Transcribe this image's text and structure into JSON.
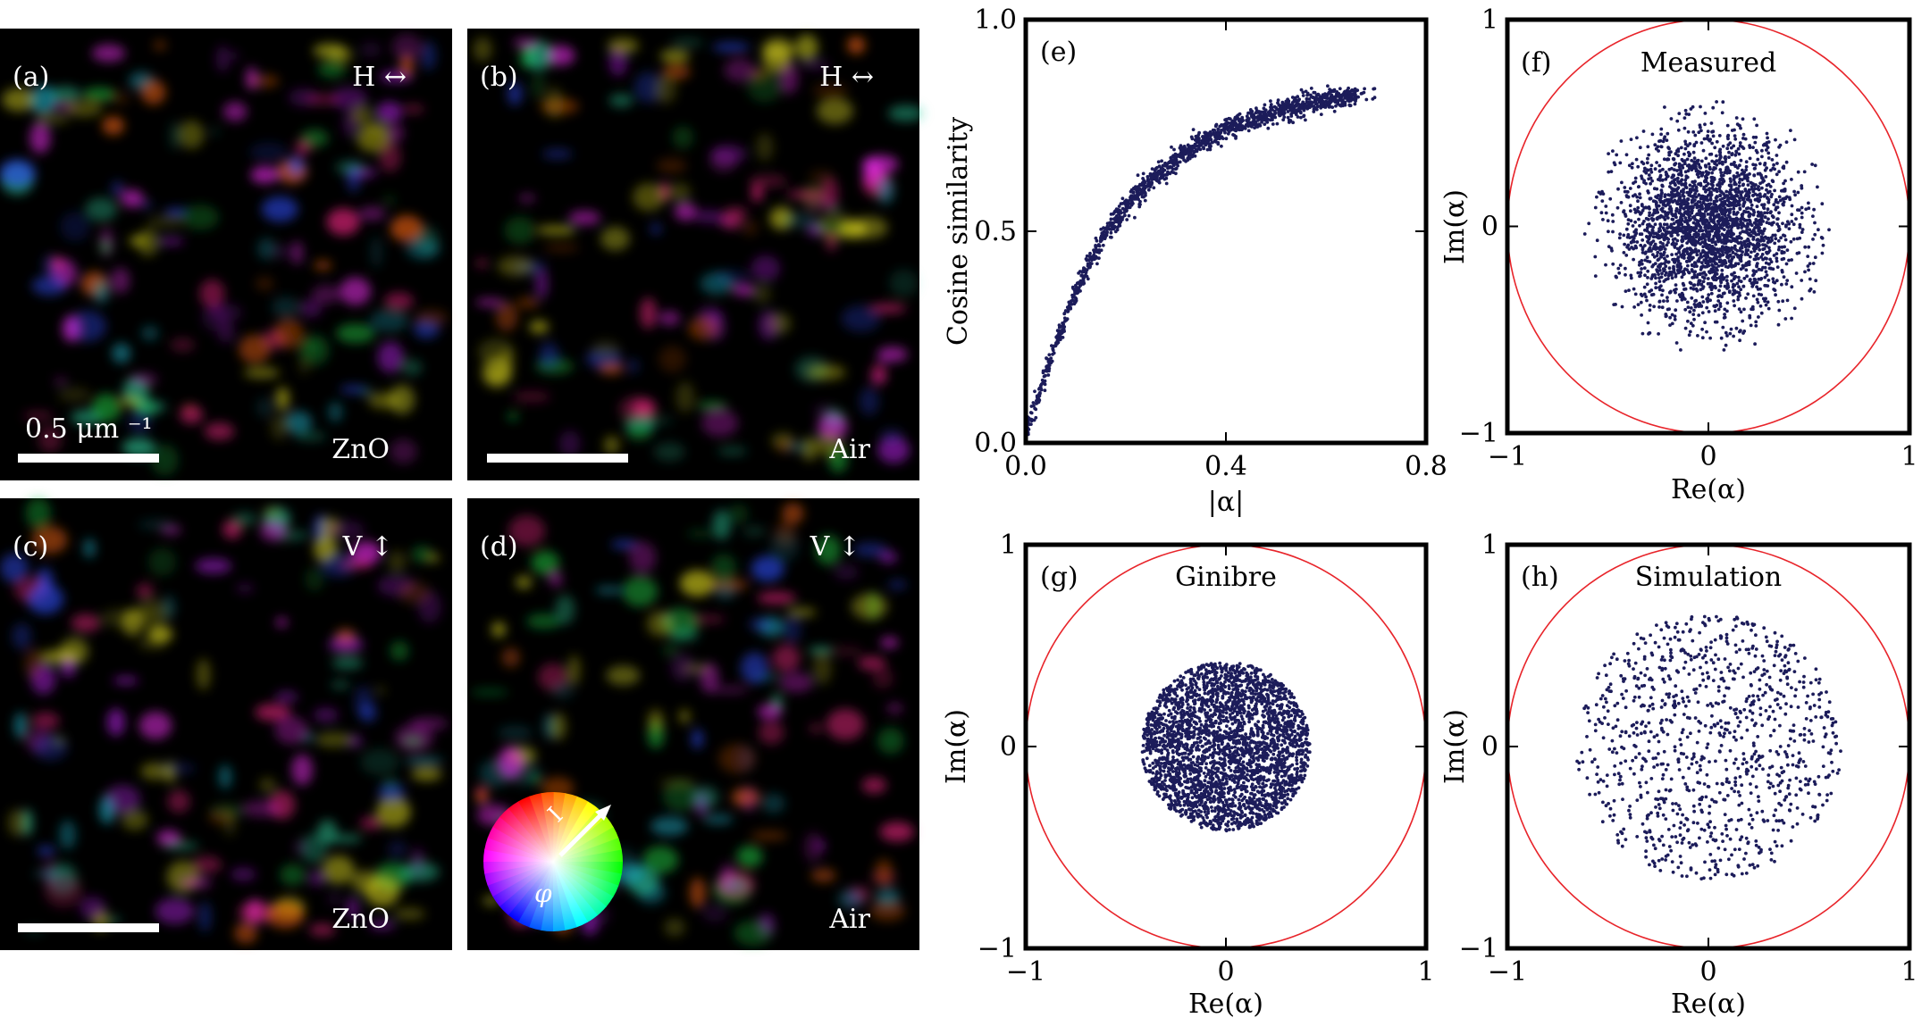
{
  "panels": {
    "a": {
      "label": "(a)",
      "pol": "H ↔",
      "medium": "ZnO",
      "scale_label": "0.5 μm ⁻¹"
    },
    "b": {
      "label": "(b)",
      "pol": "H ↔",
      "medium": "Air"
    },
    "c": {
      "label": "(c)",
      "pol": "V ↕",
      "medium": "ZnO"
    },
    "d": {
      "label": "(d)",
      "pol": "V ↕",
      "medium": "Air",
      "wheel_radial": "I",
      "wheel_phase": "φ"
    }
  },
  "colors": {
    "points": "#1c1c5a",
    "circle": "#e8242a",
    "panel_bg": "#000000",
    "wheel_arrow": "#ffffff"
  },
  "chart_data": [
    {
      "id": "e",
      "type": "scatter",
      "label": "(e)",
      "title": "",
      "xlabel": "|α|",
      "ylabel": "Cosine similarity",
      "xlim": [
        0.0,
        0.8
      ],
      "ylim": [
        0.0,
        1.0
      ],
      "xticks": [
        "0.0",
        "0.4",
        "0.8"
      ],
      "yticks": [
        "0.0",
        "0.5",
        "1.0"
      ],
      "curve": {
        "x": [
          0.0,
          0.05,
          0.1,
          0.15,
          0.2,
          0.25,
          0.3,
          0.35,
          0.4,
          0.45,
          0.5,
          0.55,
          0.6,
          0.65,
          0.7
        ],
        "y": [
          0.02,
          0.2,
          0.36,
          0.48,
          0.56,
          0.62,
          0.67,
          0.71,
          0.74,
          0.76,
          0.78,
          0.8,
          0.81,
          0.82,
          0.83
        ]
      },
      "n_points": 1400,
      "grid": false
    },
    {
      "id": "f",
      "type": "scatter",
      "label": "(f)",
      "title": "Measured",
      "xlabel": "Re(α)",
      "ylabel": "Im(α)",
      "xlim": [
        -1,
        1
      ],
      "ylim": [
        -1,
        1
      ],
      "xticks": [
        "−1",
        "0",
        "1"
      ],
      "yticks": [
        "−1",
        "0",
        "1"
      ],
      "unit_circle": true,
      "distribution": "gaussian",
      "spread": 0.22,
      "max_radius": 0.62,
      "n_points": 2600
    },
    {
      "id": "g",
      "type": "scatter",
      "label": "(g)",
      "title": "Ginibre",
      "xlabel": "Re(α)",
      "ylabel": "Im(α)",
      "xlim": [
        -1,
        1
      ],
      "ylim": [
        -1,
        1
      ],
      "xticks": [
        "−1",
        "0",
        "1"
      ],
      "yticks": [
        "−1",
        "0",
        "1"
      ],
      "unit_circle": true,
      "distribution": "uniform_disk",
      "max_radius": 0.42,
      "n_points": 3000
    },
    {
      "id": "h",
      "type": "scatter",
      "label": "(h)",
      "title": "Simulation",
      "xlabel": "Re(α)",
      "ylabel": "Im(α)",
      "xlim": [
        -1,
        1
      ],
      "ylim": [
        -1,
        1
      ],
      "xticks": [
        "−1",
        "0",
        "1"
      ],
      "yticks": [
        "−1",
        "0",
        "1"
      ],
      "unit_circle": true,
      "distribution": "uniform_disk",
      "max_radius": 0.66,
      "n_points": 1000
    }
  ]
}
